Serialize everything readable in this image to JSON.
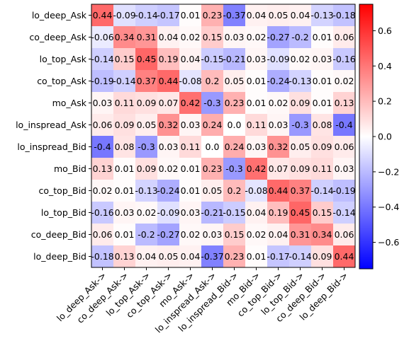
{
  "chart_data": {
    "type": "heatmap",
    "title": "",
    "xlabel": "",
    "ylabel": "",
    "rows": [
      "lo_deep_Ask",
      "co_deep_Ask",
      "lo_top_Ask",
      "co_top_Ask",
      "mo_Ask",
      "lo_inspread_Ask",
      "lo_inspread_Bid",
      "mo_Bid",
      "co_top_Bid",
      "lo_top_Bid",
      "co_deep_Bid",
      "lo_deep_Bid"
    ],
    "columns": [
      "lo_deep_Ask->",
      "co_deep_Ask->",
      "lo_top_Ask->",
      "co_top_Ask->",
      "mo_Ask->",
      "lo_inspread_Ask->",
      "lo_inspread_Bid->",
      "mo_Bid->",
      "co_top_Bid->",
      "lo_top_Bid->",
      "co_deep_Bid->",
      "lo_deep_Bid->"
    ],
    "values": [
      [
        0.44,
        -0.09,
        -0.14,
        -0.17,
        0.01,
        0.23,
        -0.37,
        0.04,
        0.05,
        0.04,
        -0.13,
        -0.18
      ],
      [
        -0.06,
        0.34,
        0.31,
        0.04,
        0.02,
        0.15,
        0.03,
        0.02,
        -0.27,
        -0.2,
        0.01,
        0.06
      ],
      [
        -0.14,
        0.15,
        0.45,
        0.19,
        0.04,
        -0.15,
        -0.21,
        0.03,
        -0.09,
        0.02,
        0.03,
        -0.16
      ],
      [
        -0.19,
        -0.14,
        0.37,
        0.44,
        -0.08,
        0.2,
        0.05,
        0.01,
        -0.24,
        -0.13,
        0.01,
        0.02
      ],
      [
        0.03,
        0.11,
        0.09,
        0.07,
        0.42,
        -0.3,
        0.23,
        0.01,
        0.02,
        0.09,
        0.01,
        0.13
      ],
      [
        0.06,
        0.09,
        0.05,
        0.32,
        0.03,
        0.24,
        0.0,
        0.11,
        0.03,
        -0.3,
        0.08,
        -0.4
      ],
      [
        -0.4,
        0.08,
        -0.3,
        0.03,
        0.11,
        0.0,
        0.24,
        0.03,
        0.32,
        0.05,
        0.09,
        0.06
      ],
      [
        0.13,
        0.01,
        0.09,
        0.02,
        0.01,
        0.23,
        -0.3,
        0.42,
        0.07,
        0.09,
        0.11,
        0.03
      ],
      [
        0.02,
        0.01,
        -0.13,
        -0.24,
        0.01,
        0.05,
        0.2,
        -0.08,
        0.44,
        0.37,
        -0.14,
        -0.19
      ],
      [
        -0.16,
        0.03,
        0.02,
        -0.09,
        0.03,
        -0.21,
        -0.15,
        0.04,
        0.19,
        0.45,
        0.15,
        -0.14
      ],
      [
        0.06,
        0.01,
        -0.2,
        -0.27,
        0.02,
        0.03,
        0.15,
        0.02,
        0.04,
        0.31,
        0.34,
        0.06
      ],
      [
        -0.18,
        0.13,
        0.04,
        0.05,
        0.04,
        -0.37,
        0.23,
        0.01,
        -0.17,
        -0.14,
        0.09,
        0.44
      ]
    ],
    "cell_labels": [
      [
        "0.44",
        "-0.09",
        "-0.14",
        "-0.17",
        "0.01",
        "0.23",
        "-0.37",
        "0.04",
        "0.05",
        "0.04",
        "-0.13",
        "-0.18"
      ],
      [
        "-0.06",
        "0.34",
        "0.31",
        "0.04",
        "0.02",
        "0.15",
        "0.03",
        "0.02",
        "-0.27",
        "-0.2",
        "0.01",
        "0.06"
      ],
      [
        "-0.14",
        "0.15",
        "0.45",
        "0.19",
        "0.04",
        "-0.15",
        "-0.21",
        "0.03",
        "-0.09",
        "0.02",
        "0.03",
        "-0.16"
      ],
      [
        "-0.19",
        "-0.14",
        "0.37",
        "0.44",
        "-0.08",
        "0.2",
        "0.05",
        "0.01",
        "-0.24",
        "-0.13",
        "0.01",
        "0.02"
      ],
      [
        "0.03",
        "0.11",
        "0.09",
        "0.07",
        "0.42",
        "-0.3",
        "0.23",
        "0.01",
        "0.02",
        "0.09",
        "0.01",
        "0.13"
      ],
      [
        "0.06",
        "0.09",
        "0.05",
        "0.32",
        "0.03",
        "0.24",
        "0.0",
        "0.11",
        "0.03",
        "-0.3",
        "0.08",
        "-0.4"
      ],
      [
        "-0.4",
        "0.08",
        "-0.3",
        "0.03",
        "0.11",
        "0.0",
        "0.24",
        "0.03",
        "0.32",
        "0.05",
        "0.09",
        "0.06"
      ],
      [
        "0.13",
        "0.01",
        "0.09",
        "0.02",
        "0.01",
        "0.23",
        "-0.3",
        "0.42",
        "0.07",
        "0.09",
        "0.11",
        "0.03"
      ],
      [
        "0.02",
        "0.01",
        "-0.13",
        "-0.24",
        "0.01",
        "0.05",
        "0.2",
        "-0.08",
        "0.44",
        "0.37",
        "-0.14",
        "-0.19"
      ],
      [
        "-0.16",
        "0.03",
        "0.02",
        "-0.09",
        "0.03",
        "-0.21",
        "-0.15",
        "0.04",
        "0.19",
        "0.45",
        "0.15",
        "-0.14"
      ],
      [
        "0.06",
        "0.01",
        "-0.2",
        "-0.27",
        "0.02",
        "0.03",
        "0.15",
        "0.02",
        "0.04",
        "0.31",
        "0.34",
        "0.06"
      ],
      [
        "-0.18",
        "0.13",
        "0.04",
        "0.05",
        "0.04",
        "-0.37",
        "0.23",
        "0.01",
        "-0.17",
        "-0.14",
        "0.09",
        "0.44"
      ]
    ],
    "colormap": "bwr",
    "vmin": -0.75,
    "vmax": 0.75,
    "colorbar": {
      "ticks": [
        -0.6,
        -0.4,
        -0.2,
        0.0,
        0.2,
        0.4,
        0.6
      ],
      "tick_labels": [
        "−0.6",
        "−0.4",
        "−0.2",
        "0.0",
        "0.2",
        "0.4",
        "0.6"
      ],
      "placement": "right"
    },
    "grid": false,
    "colors": {
      "low": "#0000ff",
      "mid": "#ffffff",
      "high": "#ff0000"
    }
  }
}
